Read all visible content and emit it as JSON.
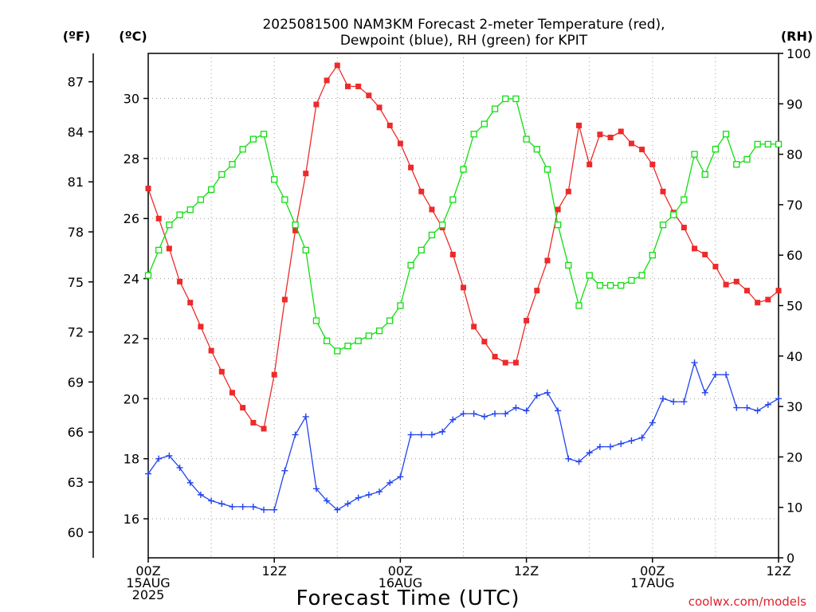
{
  "title_lines": [
    "2025081500 NAM3KM Forecast 2-meter Temperature (red),",
    "Dewpoint (blue), RH (green) for KPIT"
  ],
  "units": {
    "fahrenheit": "(ºF)",
    "celsius": "(ºC)",
    "rh": "(RH)"
  },
  "xlabel": "Forecast Time (UTC)",
  "credit": "coolwx.com/models",
  "colors": {
    "temperature": "#ee2a2a",
    "dewpoint": "#2244ee",
    "rh": "#11dd11"
  },
  "chart_data": {
    "type": "line",
    "x_unit": "forecast hour from 2025-08-15 00Z",
    "x": [
      0,
      1,
      2,
      3,
      4,
      5,
      6,
      7,
      8,
      9,
      10,
      11,
      12,
      13,
      14,
      15,
      16,
      17,
      18,
      19,
      20,
      21,
      22,
      23,
      24,
      25,
      26,
      27,
      28,
      29,
      30,
      31,
      32,
      33,
      34,
      35,
      36,
      37,
      38,
      39,
      40,
      41,
      42,
      43,
      44,
      45,
      46,
      47,
      48,
      49,
      50,
      51,
      52,
      53,
      54,
      55,
      56,
      57,
      58,
      59,
      60
    ],
    "x_ticks": [
      {
        "hour": 0,
        "lines": [
          "00Z",
          "15AUG",
          "2025"
        ]
      },
      {
        "hour": 12,
        "lines": [
          "12Z"
        ]
      },
      {
        "hour": 24,
        "lines": [
          "00Z",
          "16AUG"
        ]
      },
      {
        "hour": 36,
        "lines": [
          "12Z"
        ]
      },
      {
        "hour": 48,
        "lines": [
          "00Z",
          "17AUG"
        ]
      },
      {
        "hour": 60,
        "lines": [
          "12Z"
        ]
      }
    ],
    "xlim": [
      0,
      60
    ],
    "y_left_c": {
      "ticks": [
        16,
        18,
        20,
        22,
        24,
        26,
        28,
        30
      ],
      "lim": [
        14.7,
        31.5
      ]
    },
    "y_left_f": {
      "ticks": [
        60,
        63,
        66,
        69,
        72,
        75,
        78,
        81,
        84,
        87
      ]
    },
    "y_right_rh": {
      "ticks": [
        0,
        10,
        20,
        30,
        40,
        50,
        60,
        70,
        80,
        90,
        100
      ],
      "lim": [
        0,
        100
      ]
    },
    "grid": true,
    "series": [
      {
        "name": "2-meter Temperature",
        "axis": "celsius",
        "marker": "filled-square",
        "values": [
          27.0,
          26.0,
          25.0,
          23.9,
          23.2,
          22.4,
          21.6,
          20.9,
          20.2,
          19.7,
          19.2,
          19.0,
          20.8,
          23.3,
          25.6,
          27.5,
          29.8,
          30.6,
          31.1,
          30.4,
          30.4,
          30.1,
          29.7,
          29.1,
          28.5,
          27.7,
          26.9,
          26.3,
          25.7,
          24.8,
          23.7,
          22.4,
          21.9,
          21.4,
          21.2,
          21.2,
          22.6,
          23.6,
          24.6,
          26.3,
          26.9,
          29.1,
          27.8,
          28.8,
          28.7,
          28.9,
          28.5,
          28.3,
          27.8,
          26.9,
          26.2,
          25.7,
          25.0,
          24.8,
          24.4,
          23.8,
          23.9,
          23.6,
          23.2,
          23.3,
          23.6
        ]
      },
      {
        "name": "Dewpoint",
        "axis": "celsius",
        "marker": "plus",
        "values": [
          17.5,
          18.0,
          18.1,
          17.7,
          17.2,
          16.8,
          16.6,
          16.5,
          16.4,
          16.4,
          16.4,
          16.3,
          16.3,
          17.6,
          18.8,
          19.4,
          17.0,
          16.6,
          16.3,
          16.5,
          16.7,
          16.8,
          16.9,
          17.2,
          17.4,
          18.8,
          18.8,
          18.8,
          18.9,
          19.3,
          19.5,
          19.5,
          19.4,
          19.5,
          19.5,
          19.7,
          19.6,
          20.1,
          20.2,
          19.6,
          18.0,
          17.9,
          18.2,
          18.4,
          18.4,
          18.5,
          18.6,
          18.7,
          19.2,
          20.0,
          19.9,
          19.9,
          21.2,
          20.2,
          20.8,
          20.8,
          19.7,
          19.7,
          19.6,
          19.8,
          20.0
        ]
      },
      {
        "name": "RH",
        "axis": "rh",
        "marker": "open-square",
        "values": [
          56,
          61,
          66,
          68,
          69,
          71,
          73,
          76,
          78,
          81,
          83,
          84,
          75,
          71,
          66,
          61,
          47,
          43,
          41,
          42,
          43,
          44,
          45,
          47,
          50,
          58,
          61,
          64,
          66,
          71,
          77,
          84,
          86,
          89,
          91,
          91,
          83,
          81,
          77,
          66,
          58,
          50,
          56,
          54,
          54,
          54,
          55,
          56,
          60,
          66,
          68,
          71,
          80,
          76,
          81,
          84,
          78,
          79,
          82,
          82,
          82
        ]
      }
    ]
  }
}
